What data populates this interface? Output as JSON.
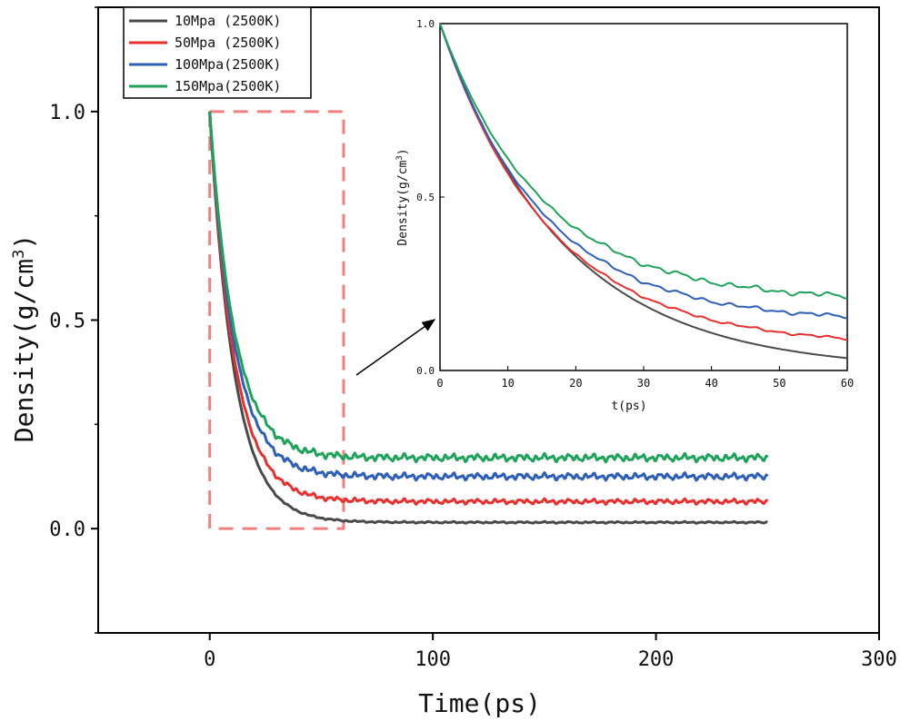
{
  "chart_data": [
    {
      "id": "main",
      "type": "line",
      "title": "",
      "xlabel": "Time(ps)",
      "ylabel_main": "Density(g/cm",
      "ylabel_sup": "3",
      "ylabel_close": ")",
      "xlim": [
        -50,
        300
      ],
      "ylim": [
        -0.25,
        1.25
      ],
      "xticks": [
        0,
        100,
        200,
        300
      ],
      "xtick_labels": [
        "0",
        "100",
        "200",
        "300"
      ],
      "yticks": [
        0,
        0.5,
        1
      ],
      "ytick_labels": [
        "0.0",
        "0.5",
        "1.0"
      ],
      "legend_position": "top-left",
      "series": [
        {
          "name": "10Mpa (2500K)",
          "color": "#4a4a4a",
          "asymptote": 0.015,
          "tau": 11,
          "noise": 0.002
        },
        {
          "name": "50Mpa (2500K)",
          "color": "#e8302e",
          "asymptote": 0.065,
          "tau": 11,
          "noise": 0.006
        },
        {
          "name": "100Mpa(2500K)",
          "color": "#2e5fb8",
          "asymptote": 0.125,
          "tau": 11,
          "noise": 0.008
        },
        {
          "name": "150Mpa(2500K)",
          "color": "#1fa35a",
          "asymptote": 0.17,
          "tau": 11,
          "noise": 0.009
        }
      ],
      "x_range": [
        0,
        250
      ],
      "zoom_box": {
        "x": [
          0,
          60
        ],
        "y": [
          0,
          1
        ],
        "color": "#f08080"
      },
      "annotations": [
        "arrow from zoom region to inset"
      ]
    },
    {
      "id": "inset",
      "type": "line",
      "xlabel": "t(ps)",
      "ylabel_main": "Density(g/cm",
      "ylabel_sup": "3",
      "ylabel_close": ")",
      "xlim": [
        0,
        60
      ],
      "ylim": [
        0,
        1
      ],
      "xticks": [
        0,
        10,
        20,
        30,
        40,
        50,
        60
      ],
      "xtick_labels": [
        "0",
        "10",
        "20",
        "30",
        "40",
        "50",
        "60"
      ],
      "yticks": [
        0,
        0.5,
        1
      ],
      "ytick_labels": [
        "0.0",
        "0.5",
        "1.0"
      ],
      "series": [
        {
          "name": "10Mpa (2500K)",
          "color": "#4a4a4a",
          "asymptote": 0.0,
          "tau": 18,
          "noise": 0.0
        },
        {
          "name": "50Mpa (2500K)",
          "color": "#e8302e",
          "asymptote": 0.07,
          "tau": 16,
          "noise": 0.004
        },
        {
          "name": "100Mpa(2500K)",
          "color": "#2e5fb8",
          "asymptote": 0.14,
          "tau": 15,
          "noise": 0.006
        },
        {
          "name": "150Mpa(2500K)",
          "color": "#1fa35a",
          "asymptote": 0.2,
          "tau": 15,
          "noise": 0.008
        }
      ]
    }
  ]
}
